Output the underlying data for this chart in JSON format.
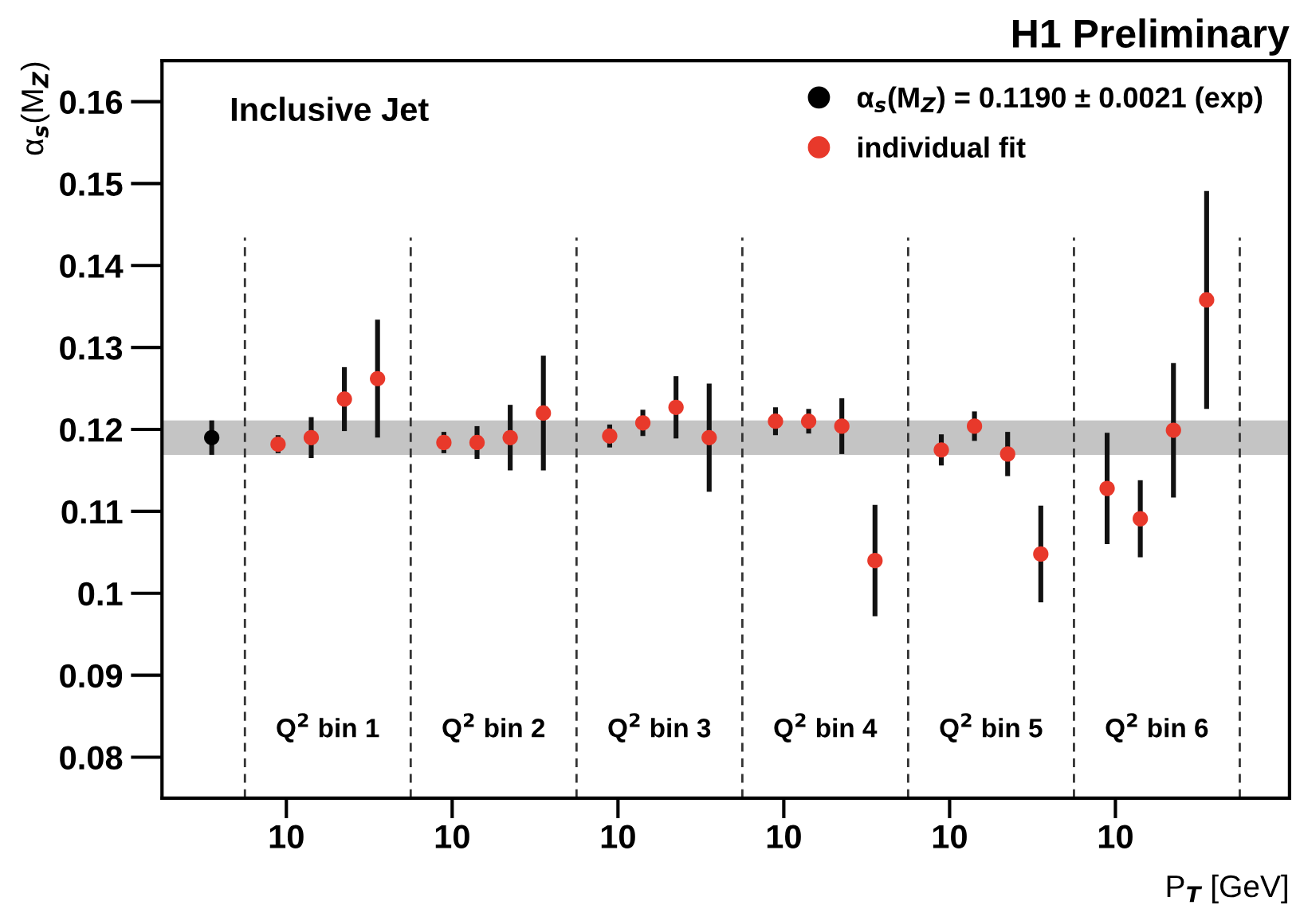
{
  "chart_data": {
    "type": "scatter",
    "title": "H1 Preliminary",
    "xlabel": "P$_{T}$ [GeV]",
    "ylabel": "α$_{s}$(M$_{Z}$)",
    "annotations": [
      "Inclusive Jet",
      "Q$^{2}$ bin 1",
      "Q$^{2}$ bin 2",
      "Q$^{2}$ bin 3",
      "Q$^{2}$ bin 4",
      "Q$^{2}$ bin 5",
      "Q$^{2}$ bin 6",
      "10",
      "10",
      "10",
      "10",
      "10",
      "10"
    ],
    "categories": [
      null,
      null,
      null,
      null,
      null,
      null,
      null,
      null,
      null,
      null,
      null,
      null,
      null,
      null,
      null,
      null,
      null,
      null,
      null,
      null,
      null,
      null,
      null,
      null,
      null,
      null,
      null,
      null,
      null,
      null,
      null,
      null,
      null,
      null
    ],
    "series": [
      {
        "name": "α$_{s}$(M$_{Z}$) = 0.1190 ± 0.0021 (exp)",
        "color": "#000000",
        "values": [
          null,
          0.119,
          null,
          null,
          null,
          null,
          null,
          null,
          null,
          null,
          null,
          null,
          null,
          null,
          null,
          null,
          null,
          null,
          null,
          null,
          null,
          null,
          null,
          null,
          null,
          null,
          null,
          null,
          null,
          null,
          null,
          null,
          null,
          null
        ],
        "errors": [
          null,
          0.0021,
          null,
          null,
          null,
          null,
          null,
          null,
          null,
          null,
          null,
          null,
          null,
          null,
          null,
          null,
          null,
          null,
          null,
          null,
          null,
          null,
          null,
          null,
          null,
          null,
          null,
          null,
          null,
          null,
          null,
          null,
          null,
          null
        ]
      },
      {
        "name": "individual fit",
        "color": "#e8392b",
        "values": [
          null,
          null,
          null,
          0.1182,
          0.119,
          0.1237,
          0.1262,
          null,
          0.1184,
          0.1184,
          0.119,
          0.122,
          null,
          0.1192,
          0.1208,
          0.1227,
          0.119,
          null,
          0.121,
          0.121,
          0.1204,
          0.104,
          null,
          0.1175,
          0.1204,
          0.117,
          0.1048,
          null,
          0.1128,
          0.1091,
          0.1199,
          0.1358,
          null,
          null
        ],
        "errors": [
          null,
          null,
          null,
          0.0011,
          0.0025,
          0.0039,
          0.0072,
          null,
          0.0013,
          0.002,
          0.004,
          0.007,
          null,
          0.0014,
          0.0016,
          0.0038,
          0.0066,
          null,
          0.0017,
          0.0015,
          0.0034,
          0.0068,
          null,
          0.0019,
          0.0018,
          0.0027,
          0.0059,
          null,
          0.0068,
          0.0047,
          0.0082,
          0.0133,
          null,
          null
        ]
      }
    ],
    "bands": [
      {
        "axis": "y",
        "from": 0.1169,
        "to": 0.1211,
        "color": "#c4c4c4"
      }
    ],
    "ylim": [
      0.075,
      0.165
    ],
    "yticks": [
      0.08,
      0.09,
      0.1,
      0.11,
      0.12,
      0.13,
      0.14,
      0.15,
      0.16
    ],
    "marker": "circle",
    "grid": "x",
    "legend": "top right"
  }
}
